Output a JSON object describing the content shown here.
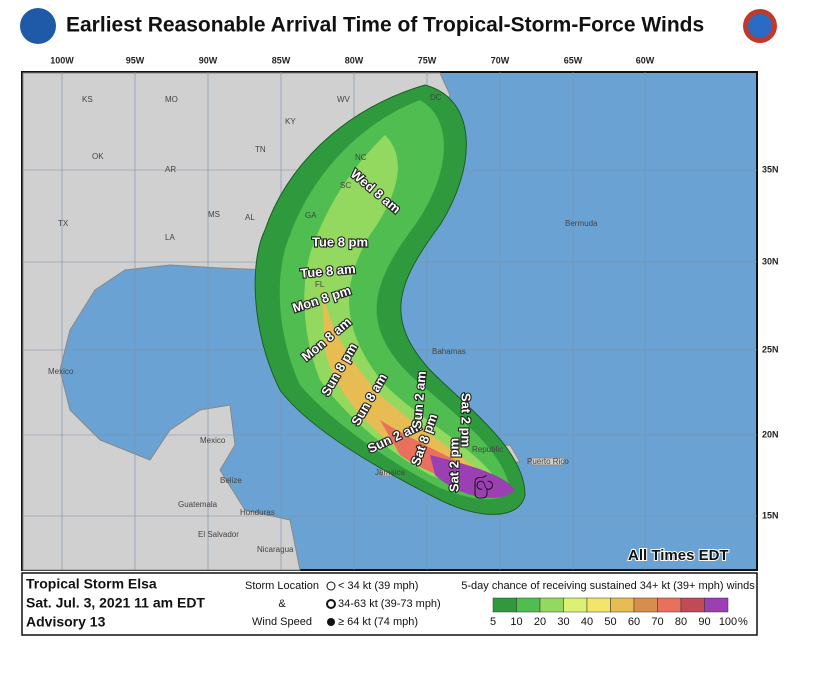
{
  "header": {
    "title": "Earliest Reasonable Arrival Time of Tropical-Storm-Force Winds"
  },
  "map": {
    "lon_labels": [
      "100W",
      "95W",
      "90W",
      "85W",
      "80W",
      "75W",
      "70W",
      "65W",
      "60W"
    ],
    "lat_labels": [
      "35N",
      "30N",
      "25N",
      "20N",
      "15N"
    ],
    "places": [
      "KS",
      "MO",
      "WV",
      "KY",
      "DC",
      "OK",
      "AR",
      "TN",
      "NC",
      "SC",
      "TX",
      "MS",
      "AL",
      "GA",
      "LA",
      "FL",
      "Bermuda",
      "Bahamas",
      "Mexico",
      "Mexico",
      "Belize",
      "Guatemala",
      "Honduras",
      "El Salvador",
      "Nicaragua",
      "Jamaica",
      "Puerto Rico",
      "Republic"
    ],
    "times": [
      "Wed 8 am",
      "Tue 8 pm",
      "Tue 8 am",
      "Mon 8 pm",
      "Mon 8 am",
      "Sun 8 pm",
      "Sun 8 am",
      "Sun 2 am",
      "Sat 8 pm",
      "Sat 2 pm",
      "Sun 2 am",
      "Sat 2 pm"
    ],
    "note": "All Times EDT"
  },
  "footer": {
    "storm": "Tropical Storm Elsa",
    "date": "Sat. Jul. 3, 2021   11 am EDT",
    "advisory": "Advisory 13",
    "legend_titles": [
      "Storm Location",
      "&",
      "Wind Speed"
    ],
    "wind_classes": [
      "< 34 kt (39 mph)",
      "34-63 kt (39-73 mph)",
      "≥ 64 kt (74 mph)"
    ],
    "scale_title": "5-day chance of receiving sustained 34+ kt (39+ mph) winds",
    "scale_ticks": [
      5,
      10,
      20,
      30,
      40,
      50,
      60,
      70,
      80,
      90,
      100
    ],
    "scale_unit": "%",
    "scale_colors": [
      "#2f9a3d",
      "#4fbd4f",
      "#93d95f",
      "#dcf172",
      "#f3e46a",
      "#e7bc52",
      "#d78e4a",
      "#e8705c",
      "#c04b57",
      "#9b40b2"
    ]
  }
}
